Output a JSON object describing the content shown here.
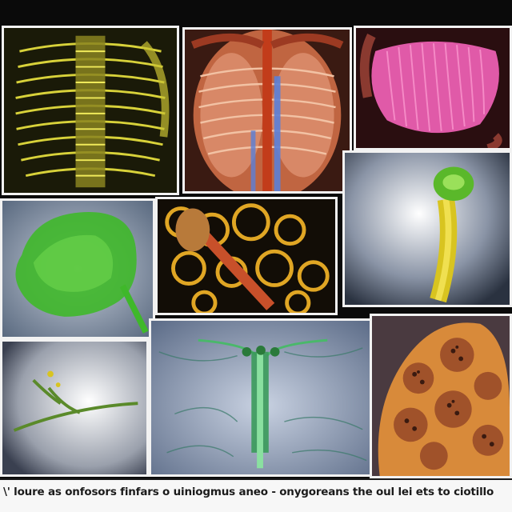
{
  "image": {
    "panels": [
      {
        "name": "yellow-ribcage-scan",
        "subject": "yellow skeletal rib cage"
      },
      {
        "name": "orange-torso-xray",
        "subject": "orange and blue chest x-ray"
      },
      {
        "name": "pink-organ-scan",
        "subject": "pink ridged organ"
      },
      {
        "name": "green-blob-scan",
        "subject": "green organ blob"
      },
      {
        "name": "yellow-lattice-scan",
        "subject": "yellow porous bone lattice"
      },
      {
        "name": "yellow-stalk-scan",
        "subject": "yellow-green stalk structure"
      },
      {
        "name": "green-vessel-branch-scan",
        "subject": "thin green branching vessel"
      },
      {
        "name": "blue-tissue-vessel-scan",
        "subject": "green vessel over blue tissue"
      },
      {
        "name": "orange-cell-cluster-scan",
        "subject": "orange cellular cluster"
      }
    ],
    "caption": "\\' loure as onfosors finfars o uiniogmus aneo - onygoreans the oul lei ets to ciotillo"
  },
  "colors": {
    "background": "#0a0a0a",
    "panel_border": "#f2f2f2",
    "caption_background": "#f7f7f7",
    "caption_text": "#1b1b1b"
  }
}
